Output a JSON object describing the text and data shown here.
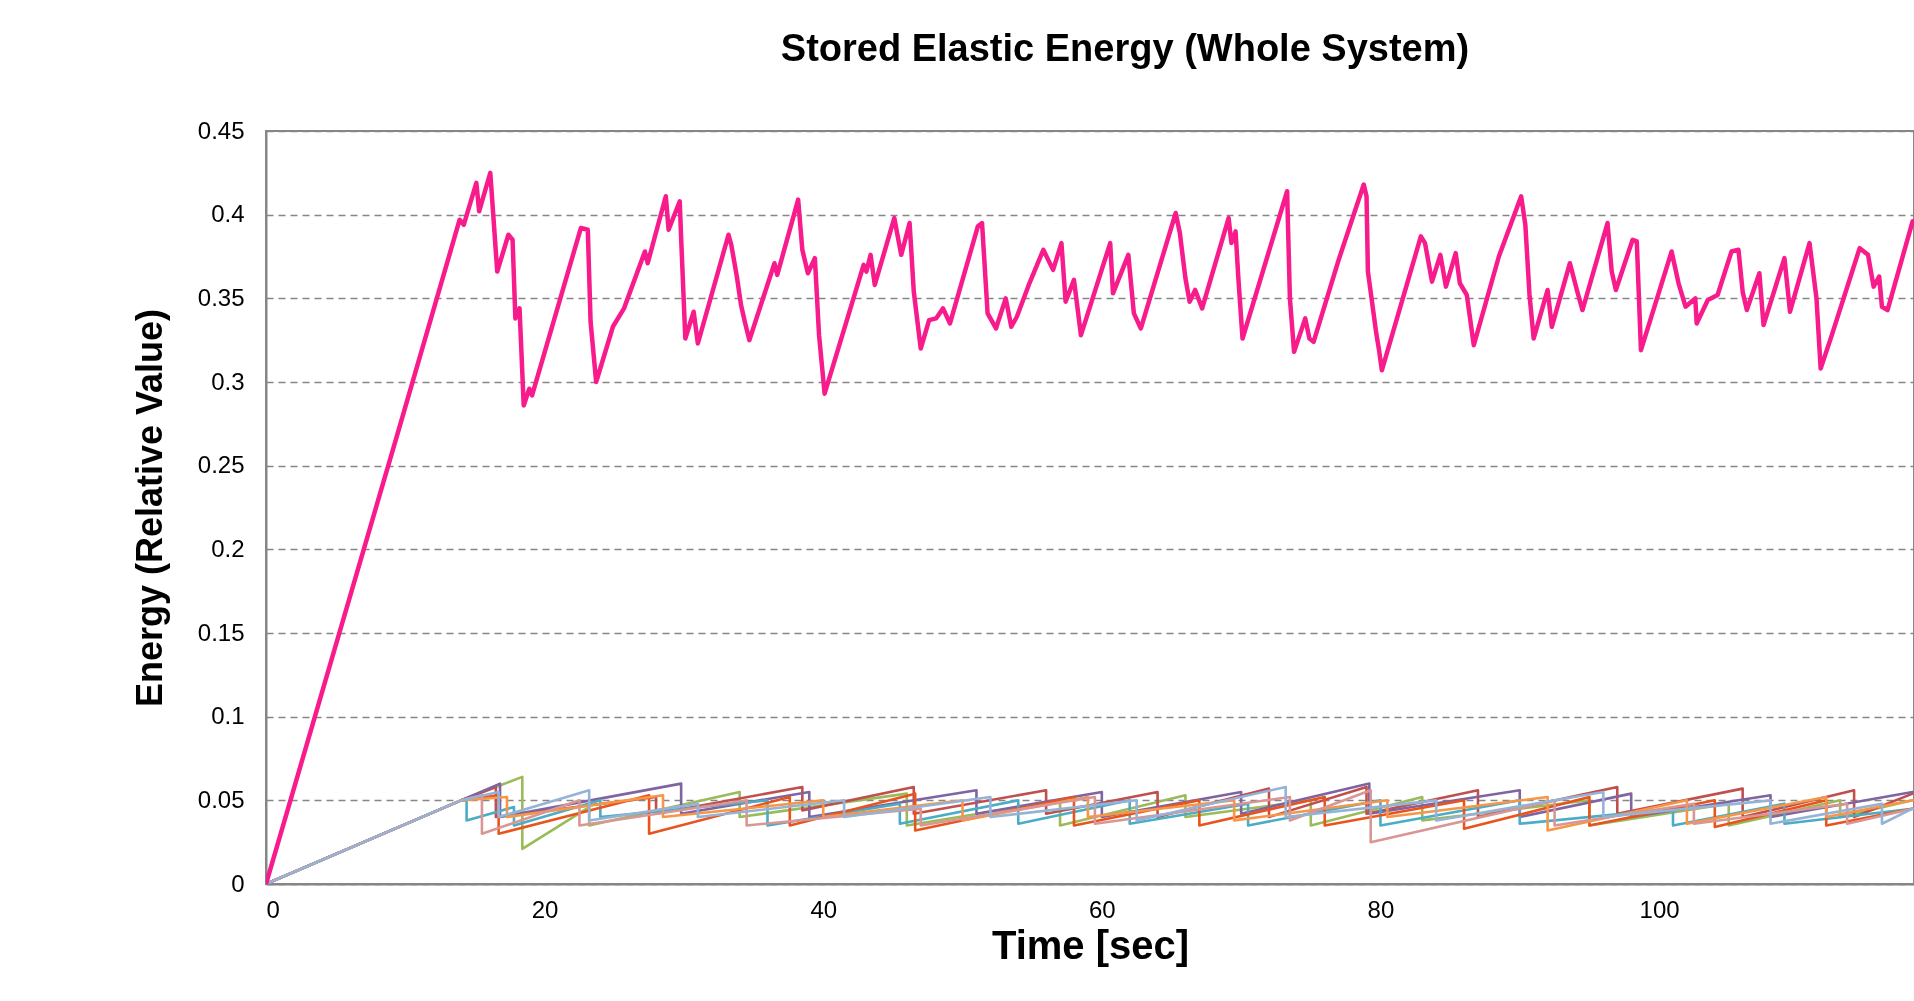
{
  "chart_data": {
    "type": "line",
    "title": "Stored Elastic Energy (Whole System)",
    "xlabel": "Time [sec]",
    "ylabel": "Energy (Relative Value)",
    "xlim": [
      0,
      118.3
    ],
    "xticks": [
      0,
      20,
      40,
      60,
      80,
      100
    ],
    "ylim": [
      0,
      0.45
    ],
    "yticks": [
      0,
      0.05,
      0.1,
      0.15,
      0.2,
      0.25,
      0.3,
      0.35,
      0.4,
      0.45
    ],
    "grid": "y",
    "line_style": "solid",
    "marker": "none",
    "series": [
      {
        "color": "#9bbb59",
        "x": [
          0,
          14,
          18.4,
          18.4,
          23.2,
          23.2,
          34,
          34,
          46,
          46,
          57,
          57,
          66,
          66,
          75,
          75,
          83,
          83,
          95,
          95,
          105,
          105,
          113,
          113,
          118.2
        ],
        "values": [
          0,
          0.05,
          0.064,
          0.021,
          0.046,
          0.035,
          0.055,
          0.04,
          0.054,
          0.035,
          0.05,
          0.035,
          0.053,
          0.04,
          0.05,
          0.035,
          0.052,
          0.038,
          0.05,
          0.035,
          0.048,
          0.035,
          0.05,
          0.04,
          0.05
        ]
      },
      {
        "color": "#c0504d",
        "x": [
          0,
          14,
          16.5,
          16.5,
          28,
          28,
          38.5,
          38.5,
          46.5,
          46.5,
          56,
          56,
          64,
          64,
          72,
          72,
          79,
          79,
          87,
          87,
          97,
          97,
          106,
          106,
          114,
          114,
          118.2
        ],
        "values": [
          0,
          0.05,
          0.058,
          0.04,
          0.052,
          0.042,
          0.058,
          0.044,
          0.058,
          0.042,
          0.056,
          0.042,
          0.055,
          0.04,
          0.057,
          0.04,
          0.058,
          0.042,
          0.056,
          0.04,
          0.058,
          0.042,
          0.057,
          0.04,
          0.056,
          0.04,
          0.054
        ]
      },
      {
        "color": "#8064a2",
        "x": [
          0,
          14,
          16.8,
          16.8,
          29.8,
          29.8,
          39,
          39,
          51,
          51,
          60,
          60,
          70,
          70,
          79.2,
          79.2,
          90,
          90,
          98,
          98,
          108,
          108,
          118.2
        ],
        "values": [
          0,
          0.05,
          0.06,
          0.04,
          0.06,
          0.042,
          0.055,
          0.04,
          0.056,
          0.042,
          0.055,
          0.04,
          0.055,
          0.042,
          0.06,
          0.042,
          0.056,
          0.04,
          0.054,
          0.04,
          0.053,
          0.04,
          0.055
        ]
      },
      {
        "color": "#4bacc6",
        "x": [
          0,
          14,
          14.4,
          14.4,
          17.8,
          17.8,
          24,
          24,
          36,
          36,
          45.5,
          45.5,
          54,
          54,
          62,
          62,
          70.5,
          70.5,
          80,
          80,
          90,
          90,
          101,
          101,
          109,
          109,
          118.2
        ],
        "values": [
          0,
          0.05,
          0.05,
          0.038,
          0.046,
          0.035,
          0.05,
          0.04,
          0.05,
          0.035,
          0.048,
          0.036,
          0.05,
          0.036,
          0.05,
          0.036,
          0.048,
          0.035,
          0.05,
          0.035,
          0.05,
          0.036,
          0.045,
          0.035,
          0.048,
          0.036,
          0.045
        ]
      },
      {
        "color": "#e9541d",
        "x": [
          0,
          14,
          16.7,
          16.7,
          27.5,
          27.5,
          37.6,
          37.6,
          46.6,
          46.6,
          58,
          58,
          67,
          67,
          76,
          76,
          86,
          86,
          95,
          95,
          104,
          104,
          112,
          112,
          118.2
        ],
        "values": [
          0,
          0.05,
          0.053,
          0.03,
          0.053,
          0.03,
          0.052,
          0.035,
          0.054,
          0.032,
          0.052,
          0.035,
          0.05,
          0.035,
          0.052,
          0.035,
          0.05,
          0.033,
          0.052,
          0.035,
          0.05,
          0.034,
          0.05,
          0.035,
          0.045
        ]
      },
      {
        "color": "#f79646",
        "x": [
          0,
          14,
          17.3,
          17.3,
          28.5,
          28.5,
          40,
          40,
          50,
          50,
          59,
          59,
          69.5,
          69.5,
          80.5,
          80.5,
          92,
          92,
          102,
          102,
          112,
          112,
          118.2
        ],
        "values": [
          0,
          0.05,
          0.052,
          0.04,
          0.053,
          0.04,
          0.05,
          0.04,
          0.05,
          0.038,
          0.052,
          0.04,
          0.05,
          0.038,
          0.05,
          0.04,
          0.052,
          0.032,
          0.05,
          0.036,
          0.052,
          0.04,
          0.05
        ]
      },
      {
        "color": "#d99694",
        "x": [
          0,
          14,
          15.5,
          15.5,
          22.5,
          22.5,
          34.5,
          34.5,
          47,
          47,
          59.5,
          59.5,
          73.5,
          73.5,
          79.3,
          79.3,
          92.5,
          92.5,
          102.5,
          102.5,
          113.5,
          113.5,
          118.2
        ],
        "values": [
          0,
          0.05,
          0.053,
          0.03,
          0.05,
          0.035,
          0.05,
          0.035,
          0.045,
          0.035,
          0.052,
          0.036,
          0.052,
          0.038,
          0.056,
          0.025,
          0.05,
          0.035,
          0.048,
          0.036,
          0.048,
          0.036,
          0.045
        ]
      },
      {
        "color": "#95b3d7",
        "x": [
          0,
          14,
          16.7,
          16.7,
          23.2,
          23.2,
          31,
          31,
          41.5,
          41.5,
          52,
          52,
          62.5,
          62.5,
          73.2,
          73.2,
          84,
          84,
          96,
          96,
          108,
          108,
          116,
          116,
          118.2
        ],
        "values": [
          0,
          0.05,
          0.055,
          0.04,
          0.056,
          0.038,
          0.048,
          0.04,
          0.05,
          0.04,
          0.052,
          0.04,
          0.05,
          0.038,
          0.058,
          0.04,
          0.05,
          0.038,
          0.055,
          0.04,
          0.05,
          0.036,
          0.048,
          0.036,
          0.045
        ]
      },
      {
        "color": "#f81b8c",
        "x": [
          0,
          9.3,
          13.9,
          14.2,
          15.1,
          15.3,
          16.1,
          16.6,
          17.4,
          17.7,
          17.9,
          18.2,
          18.5,
          18.9,
          19.1,
          22.6,
          23.1,
          23.3,
          23.7,
          24.9,
          25.7,
          27.2,
          27.4,
          28.7,
          28.9,
          29.7,
          29.8,
          30.1,
          30.7,
          31.0,
          33.2,
          33.4,
          33.8,
          34.1,
          34.4,
          34.7,
          36.5,
          36.7,
          38.2,
          38.5,
          38.9,
          39.4,
          39.7,
          40.1,
          42.9,
          43.1,
          43.4,
          43.7,
          45.1,
          45.6,
          46.2,
          46.5,
          47.0,
          47.6,
          48.1,
          48.6,
          49.1,
          51.1,
          51.4,
          51.8,
          52.4,
          53.1,
          53.5,
          53.9,
          54.8,
          55.8,
          56.5,
          57.1,
          57.4,
          58.0,
          58.5,
          60.6,
          60.8,
          61.9,
          62.3,
          62.8,
          65.3,
          65.6,
          66.0,
          66.3,
          66.7,
          67.2,
          69.1,
          69.3,
          69.6,
          69.8,
          70.1,
          73.3,
          73.5,
          73.8,
          74.6,
          74.9,
          75.2,
          77.0,
          78.8,
          79.0,
          79.1,
          79.7,
          79.9,
          80.1,
          82.9,
          83.2,
          83.7,
          84.3,
          84.7,
          85.4,
          85.7,
          86.2,
          86.7,
          88.5,
          90.1,
          90.4,
          90.7,
          91.0,
          92.0,
          92.3,
          93.6,
          94.1,
          94.5,
          96.3,
          96.6,
          96.9,
          98.1,
          98.4,
          98.7,
          100.9,
          101.4,
          101.9,
          102.6,
          102.7,
          103.5,
          104.2,
          105.2,
          105.7,
          106.0,
          106.3,
          107.2,
          107.5,
          109.0,
          109.4,
          110.8,
          111.3,
          111.6,
          112.4,
          114.4,
          115.0,
          115.4,
          115.8,
          116.0,
          116.4,
          118.2
        ],
        "values": [
          0,
          0.265,
          0.397,
          0.394,
          0.419,
          0.402,
          0.425,
          0.366,
          0.388,
          0.385,
          0.338,
          0.344,
          0.286,
          0.296,
          0.292,
          0.392,
          0.391,
          0.336,
          0.3,
          0.333,
          0.344,
          0.378,
          0.371,
          0.411,
          0.391,
          0.408,
          0.386,
          0.326,
          0.342,
          0.323,
          0.388,
          0.382,
          0.363,
          0.346,
          0.335,
          0.325,
          0.371,
          0.364,
          0.409,
          0.379,
          0.365,
          0.374,
          0.328,
          0.293,
          0.37,
          0.366,
          0.376,
          0.358,
          0.398,
          0.376,
          0.395,
          0.354,
          0.32,
          0.337,
          0.338,
          0.344,
          0.335,
          0.393,
          0.395,
          0.341,
          0.332,
          0.35,
          0.333,
          0.339,
          0.359,
          0.379,
          0.367,
          0.383,
          0.348,
          0.361,
          0.328,
          0.383,
          0.353,
          0.376,
          0.341,
          0.332,
          0.401,
          0.389,
          0.362,
          0.348,
          0.355,
          0.344,
          0.398,
          0.383,
          0.39,
          0.362,
          0.326,
          0.414,
          0.35,
          0.318,
          0.338,
          0.326,
          0.324,
          0.373,
          0.418,
          0.411,
          0.366,
          0.329,
          0.319,
          0.307,
          0.387,
          0.383,
          0.36,
          0.376,
          0.357,
          0.377,
          0.359,
          0.352,
          0.322,
          0.375,
          0.411,
          0.394,
          0.352,
          0.326,
          0.355,
          0.333,
          0.371,
          0.355,
          0.343,
          0.395,
          0.366,
          0.355,
          0.385,
          0.384,
          0.319,
          0.378,
          0.359,
          0.345,
          0.35,
          0.335,
          0.349,
          0.352,
          0.378,
          0.379,
          0.354,
          0.343,
          0.365,
          0.334,
          0.374,
          0.342,
          0.383,
          0.35,
          0.308,
          0.328,
          0.38,
          0.376,
          0.357,
          0.363,
          0.345,
          0.343,
          0.396
        ]
      }
    ]
  }
}
